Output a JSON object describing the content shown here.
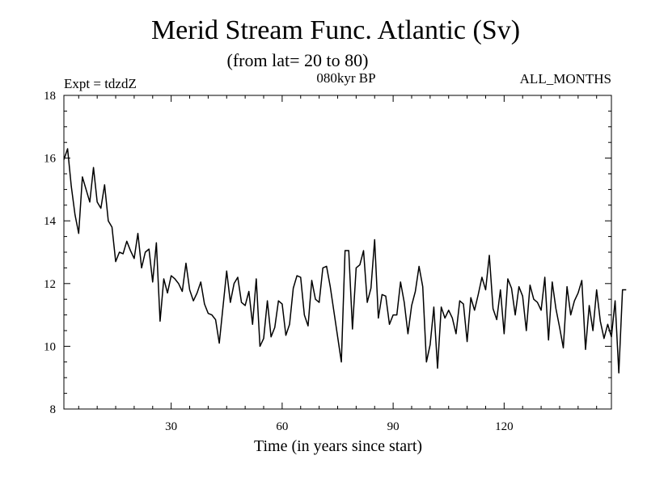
{
  "chart_data": {
    "type": "line",
    "title": "Merid Stream Func. Atlantic (Sv)",
    "subtitle": "(from lat= 20 to 80)",
    "left_label": "Expt = tdzdZ",
    "center_label": "080kyr BP",
    "right_label": "ALL_MONTHS",
    "xlabel": "Time (in years since start)",
    "ylabel": "",
    "xlim": [
      1,
      149
    ],
    "ylim": [
      8,
      18
    ],
    "x_ticks": [
      30,
      60,
      90,
      120
    ],
    "x_tick_labels": [
      "30",
      "60",
      "90",
      "120"
    ],
    "y_ticks": [
      8,
      10,
      12,
      14,
      16,
      18
    ],
    "y_tick_labels": [
      "8",
      "10",
      "12",
      "14",
      "16",
      "18"
    ],
    "x_start": 1,
    "x_step": 1,
    "series": [
      {
        "name": "Merid Stream Func.",
        "values": [
          15.95,
          16.3,
          15.1,
          14.2,
          13.6,
          15.4,
          15.0,
          14.6,
          15.7,
          14.6,
          14.4,
          15.15,
          14.0,
          13.8,
          12.7,
          13.0,
          12.95,
          13.35,
          13.05,
          12.8,
          13.6,
          12.5,
          13.0,
          13.1,
          12.05,
          13.3,
          10.8,
          12.15,
          11.7,
          12.25,
          12.15,
          12.0,
          11.75,
          12.65,
          11.8,
          11.45,
          11.7,
          12.05,
          11.35,
          11.05,
          11.0,
          10.85,
          10.1,
          11.25,
          12.4,
          11.4,
          12.0,
          12.2,
          11.4,
          11.3,
          11.75,
          10.7,
          12.15,
          10.0,
          10.25,
          11.45,
          10.3,
          10.6,
          11.45,
          11.35,
          10.35,
          10.7,
          11.85,
          12.25,
          12.2,
          11.0,
          10.65,
          12.1,
          11.5,
          11.4,
          12.5,
          12.55,
          11.9,
          11.1,
          10.3,
          9.5,
          13.05,
          13.05,
          10.55,
          12.5,
          12.6,
          13.05,
          11.4,
          11.85,
          13.4,
          10.9,
          11.65,
          11.6,
          10.7,
          11.0,
          11.0,
          12.05,
          11.4,
          10.4,
          11.3,
          11.75,
          12.55,
          11.9,
          9.5,
          10.05,
          11.25,
          9.3,
          11.25,
          10.9,
          11.15,
          10.9,
          10.4,
          11.45,
          11.35,
          10.15,
          11.55,
          11.15,
          11.65,
          12.2,
          11.8,
          12.9,
          11.2,
          10.85,
          11.8,
          10.4,
          12.15,
          11.85,
          11.0,
          11.9,
          11.6,
          10.5,
          11.95,
          11.5,
          11.4,
          11.15,
          12.2,
          10.2,
          12.05,
          11.2,
          10.6,
          9.95,
          11.9,
          11.0,
          11.45,
          11.7,
          12.1,
          9.9,
          11.3,
          10.5,
          11.8,
          10.8,
          10.25,
          10.7,
          10.3,
          11.45,
          9.15,
          11.8,
          11.8
        ]
      }
    ]
  }
}
